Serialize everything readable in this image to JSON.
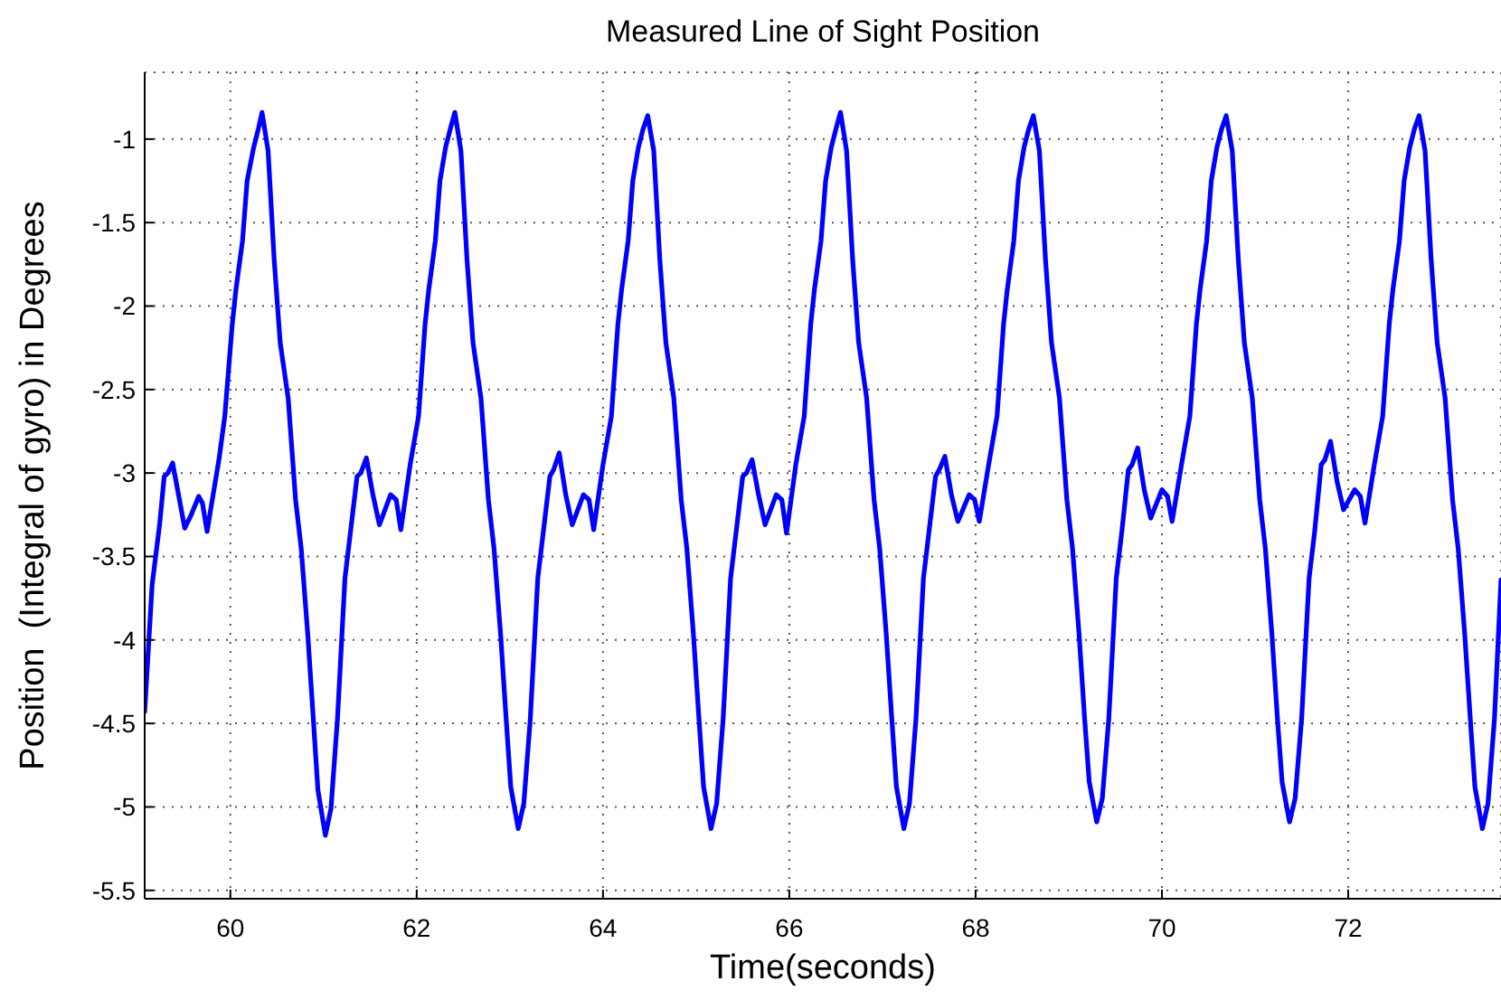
{
  "chart_data": {
    "type": "line",
    "title": "Measured Line of Sight Position",
    "xlabel": "Time(seconds)",
    "ylabel": "Position  (Integral of gyro) in Degrees",
    "x": [
      59.08,
      59.16,
      59.24,
      59.29,
      59.33,
      59.38,
      59.43,
      59.51,
      59.58,
      59.66,
      59.7,
      59.75,
      59.88,
      59.94,
      60.02,
      60.06,
      60.13,
      60.18,
      60.25,
      60.3,
      60.34,
      60.405,
      60.47,
      60.535,
      60.62,
      60.7,
      60.76,
      60.83,
      60.89,
      60.94,
      61.02,
      61.08,
      61.15,
      61.23,
      61.29,
      61.36,
      61.4,
      61.46,
      61.53,
      61.6,
      61.72,
      61.78,
      61.83,
      61.93,
      62.02,
      62.09,
      62.13,
      62.2,
      62.25,
      62.31,
      62.36,
      62.41,
      62.475,
      62.54,
      62.605,
      62.69,
      62.77,
      62.83,
      62.9,
      62.96,
      63.01,
      63.09,
      63.15,
      63.22,
      63.3,
      63.36,
      63.43,
      63.47,
      63.53,
      63.6,
      63.67,
      63.79,
      63.85,
      63.9,
      64.0,
      64.09,
      64.16,
      64.2,
      64.27,
      64.32,
      64.38,
      64.43,
      64.48,
      64.545,
      64.61,
      64.675,
      64.76,
      64.84,
      64.9,
      64.97,
      65.03,
      65.08,
      65.16,
      65.22,
      65.29,
      65.37,
      65.43,
      65.5,
      65.54,
      65.6,
      65.67,
      65.74,
      65.86,
      65.92,
      65.97,
      66.07,
      66.16,
      66.23,
      66.27,
      66.34,
      66.39,
      66.45,
      66.5,
      66.55,
      66.615,
      66.68,
      66.745,
      66.83,
      66.91,
      66.97,
      67.04,
      67.1,
      67.15,
      67.23,
      67.29,
      67.36,
      67.44,
      67.5,
      67.57,
      67.61,
      67.67,
      67.74,
      67.81,
      67.93,
      67.99,
      68.04,
      68.14,
      68.23,
      68.3,
      68.34,
      68.41,
      68.46,
      68.52,
      68.57,
      68.62,
      68.685,
      68.75,
      68.815,
      68.9,
      68.98,
      69.04,
      69.11,
      69.17,
      69.22,
      69.3,
      69.36,
      69.43,
      69.51,
      69.57,
      69.64,
      69.68,
      69.74,
      69.81,
      69.88,
      70.0,
      70.06,
      70.11,
      70.21,
      70.3,
      70.37,
      70.41,
      70.48,
      70.53,
      70.59,
      70.64,
      70.69,
      70.755,
      70.82,
      70.885,
      70.97,
      71.05,
      71.11,
      71.18,
      71.24,
      71.29,
      71.37,
      71.43,
      71.5,
      71.58,
      71.64,
      71.71,
      71.75,
      71.81,
      71.88,
      71.95,
      72.07,
      72.13,
      72.18,
      72.28,
      72.37,
      72.44,
      72.48,
      72.55,
      72.6,
      72.66,
      72.71,
      72.76,
      72.825,
      72.89,
      72.955,
      73.04,
      73.12,
      73.18,
      73.25,
      73.31,
      73.36,
      73.44,
      73.5,
      73.57,
      73.64
    ],
    "series": [
      {
        "color": "#0000ff",
        "values": [
          -4.43,
          -3.67,
          -3.31,
          -3.02,
          -3.0,
          -2.94,
          -3.09,
          -3.33,
          -3.25,
          -3.14,
          -3.18,
          -3.35,
          -2.91,
          -2.66,
          -2.11,
          -1.9,
          -1.61,
          -1.25,
          -1.05,
          -0.94,
          -0.84,
          -1.07,
          -1.72,
          -2.22,
          -2.55,
          -3.16,
          -3.45,
          -3.96,
          -4.47,
          -4.9,
          -5.17,
          -5.01,
          -4.47,
          -3.63,
          -3.35,
          -3.02,
          -3.0,
          -2.91,
          -3.13,
          -3.31,
          -3.13,
          -3.16,
          -3.34,
          -2.95,
          -2.66,
          -2.11,
          -1.9,
          -1.61,
          -1.25,
          -1.05,
          -0.94,
          -0.84,
          -1.07,
          -1.72,
          -2.22,
          -2.55,
          -3.16,
          -3.45,
          -3.96,
          -4.47,
          -4.88,
          -5.13,
          -4.98,
          -4.47,
          -3.63,
          -3.35,
          -3.02,
          -2.98,
          -2.88,
          -3.13,
          -3.31,
          -3.13,
          -3.16,
          -3.34,
          -2.95,
          -2.66,
          -2.11,
          -1.9,
          -1.61,
          -1.25,
          -1.05,
          -0.94,
          -0.86,
          -1.07,
          -1.72,
          -2.22,
          -2.55,
          -3.16,
          -3.45,
          -3.96,
          -4.47,
          -4.88,
          -5.13,
          -4.98,
          -4.47,
          -3.63,
          -3.35,
          -3.02,
          -3.0,
          -2.92,
          -3.13,
          -3.31,
          -3.13,
          -3.16,
          -3.36,
          -2.95,
          -2.66,
          -2.11,
          -1.9,
          -1.61,
          -1.25,
          -1.05,
          -0.94,
          -0.84,
          -1.07,
          -1.72,
          -2.22,
          -2.55,
          -3.16,
          -3.45,
          -3.96,
          -4.47,
          -4.88,
          -5.13,
          -4.98,
          -4.47,
          -3.63,
          -3.35,
          -3.02,
          -2.98,
          -2.9,
          -3.13,
          -3.29,
          -3.13,
          -3.16,
          -3.29,
          -2.95,
          -2.66,
          -2.11,
          -1.9,
          -1.61,
          -1.25,
          -1.05,
          -0.94,
          -0.86,
          -1.07,
          -1.72,
          -2.22,
          -2.55,
          -3.16,
          -3.45,
          -3.96,
          -4.47,
          -4.85,
          -5.09,
          -4.95,
          -4.47,
          -3.63,
          -3.35,
          -2.98,
          -2.95,
          -2.85,
          -3.1,
          -3.27,
          -3.1,
          -3.14,
          -3.29,
          -2.95,
          -2.66,
          -2.11,
          -1.9,
          -1.61,
          -1.25,
          -1.05,
          -0.94,
          -0.86,
          -1.07,
          -1.72,
          -2.22,
          -2.55,
          -3.16,
          -3.45,
          -3.96,
          -4.47,
          -4.85,
          -5.09,
          -4.95,
          -4.47,
          -3.63,
          -3.35,
          -2.95,
          -2.92,
          -2.81,
          -3.05,
          -3.22,
          -3.1,
          -3.14,
          -3.3,
          -2.95,
          -2.66,
          -2.11,
          -1.9,
          -1.61,
          -1.25,
          -1.05,
          -0.94,
          -0.86,
          -1.07,
          -1.72,
          -2.22,
          -2.55,
          -3.16,
          -3.45,
          -3.96,
          -4.47,
          -4.88,
          -5.13,
          -4.98,
          -4.47,
          -3.64
        ]
      }
    ],
    "xlim": [
      59.08,
      73.64
    ],
    "xticks": [
      60,
      62,
      64,
      66,
      68,
      70,
      72
    ],
    "ylim": [
      -5.55,
      -0.6
    ],
    "yticks": [
      -5.5,
      -5,
      -4.5,
      -4,
      -3.5,
      -3,
      -2.5,
      -2,
      -1.5,
      -1
    ],
    "grid": true,
    "legend": false,
    "marker": "none",
    "line_style": "solid"
  }
}
